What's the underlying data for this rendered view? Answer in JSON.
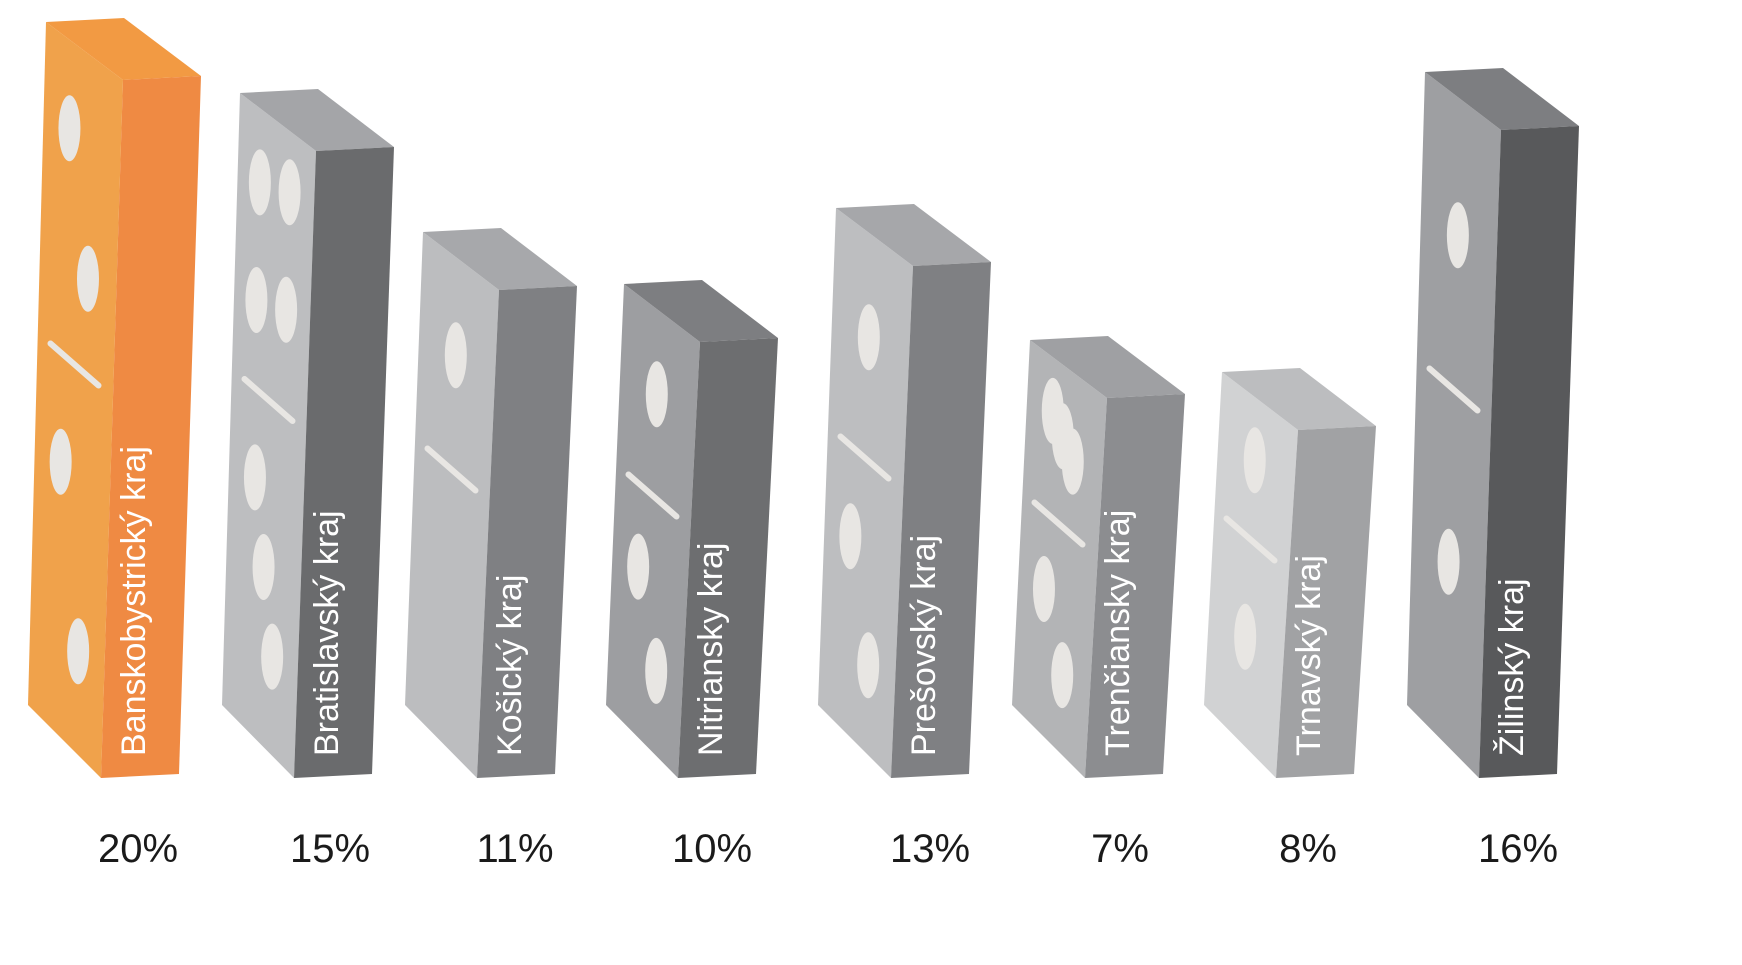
{
  "chart_data": {
    "type": "bar",
    "title": "",
    "xlabel": "",
    "ylabel": "",
    "categories": [
      "Banskobystrický kraj",
      "Bratislavský kraj",
      "Košický kraj",
      "Nitriansky kraj",
      "Prešovský kraj",
      "Trenčiansky kraj",
      "Trnavský kraj",
      "Žilinský kraj"
    ],
    "values": [
      20,
      15,
      11,
      10,
      13,
      7,
      8,
      16
    ],
    "value_labels": [
      "20%",
      "15%",
      "11%",
      "10%",
      "13%",
      "7%",
      "8%",
      "16%"
    ],
    "unit": "%",
    "grid": false,
    "legend": "none",
    "colors": {
      "highlight_side": "#ef8a43",
      "highlight_front": "#f0a24b",
      "highlight_top": "#f29a43",
      "pip": "#e8e6e3",
      "label_text": "#ffffff",
      "value_text": "#1a1a1a"
    },
    "domino_shades": [
      {
        "front": "#f0a24b",
        "side": "#ef8a43",
        "top": "#f29a43"
      },
      {
        "front": "#bdbec0",
        "side": "#6a6b6d",
        "top": "#a4a5a8"
      },
      {
        "front": "#bcbdbf",
        "side": "#7f8083",
        "top": "#a7a8ab"
      },
      {
        "front": "#9d9ea1",
        "side": "#6d6e70",
        "top": "#7d7e81"
      },
      {
        "front": "#bdbec0",
        "side": "#7f8083",
        "top": "#a6a7aa"
      },
      {
        "front": "#b3b4b6",
        "side": "#8c8d90",
        "top": "#9fa0a3"
      },
      {
        "front": "#d1d2d3",
        "side": "#a1a2a4",
        "top": "#bcbdbf"
      },
      {
        "front": "#9e9fa2",
        "side": "#58595b",
        "top": "#7d7e81"
      }
    ],
    "pips_top": [
      2,
      4,
      1,
      1,
      1,
      3,
      1,
      1
    ],
    "pips_bottom": [
      2,
      3,
      0,
      2,
      2,
      2,
      1,
      1
    ]
  }
}
